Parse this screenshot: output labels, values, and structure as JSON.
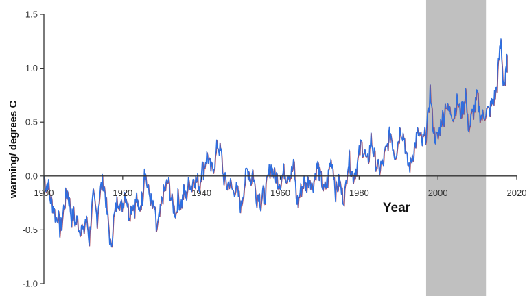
{
  "chart_data": {
    "type": "line",
    "title": "",
    "xlabel": "Year",
    "ylabel": "warming/ degrees C",
    "xlim": [
      1900,
      2020
    ],
    "ylim": [
      -1.0,
      1.5
    ],
    "x_ticks": [
      "1900",
      "1920",
      "1940",
      "1960",
      "1980",
      "2000",
      "2020"
    ],
    "y_ticks": [
      "1.5",
      "1.0",
      "0.5",
      "0.0",
      "-0.5",
      "-1.0"
    ],
    "grid": false,
    "legend": "none",
    "highlight_band": {
      "from": 1997,
      "to": 2012.2,
      "color": "#c0c0c0"
    },
    "colors": {
      "series_main": "#2e6fe0",
      "series_under": "#b04050",
      "axis": "#333333"
    },
    "values_by_year": {
      "1900": [
        0.0,
        -0.1
      ],
      "1901": [
        -0.05,
        -0.2
      ],
      "1902": [
        -0.25,
        -0.3
      ],
      "1903": [
        -0.4,
        -0.35
      ],
      "1904": [
        -0.5,
        -0.45
      ],
      "1905": [
        -0.3,
        -0.2
      ],
      "1906": [
        -0.15,
        -0.25
      ],
      "1907": [
        -0.4,
        -0.35
      ],
      "1908": [
        -0.45,
        -0.4
      ],
      "1909": [
        -0.5,
        -0.45
      ],
      "1910": [
        -0.55,
        -0.4
      ],
      "1911": [
        -0.45,
        -0.6
      ],
      "1912": [
        -0.35,
        -0.2
      ],
      "1913": [
        -0.3,
        -0.4
      ],
      "1914": [
        -0.2,
        -0.1
      ],
      "1915": [
        -0.05,
        -0.15
      ],
      "1916": [
        -0.35,
        -0.5
      ],
      "1917": [
        -0.7,
        -0.45
      ],
      "1918": [
        -0.35,
        -0.25
      ],
      "1919": [
        -0.2,
        -0.3
      ],
      "1920": [
        -0.25,
        -0.15
      ],
      "1921": [
        -0.2,
        -0.35
      ],
      "1922": [
        -0.3,
        -0.25
      ],
      "1923": [
        -0.3,
        -0.2
      ],
      "1924": [
        -0.35,
        -0.25
      ],
      "1925": [
        -0.2,
        0.1
      ],
      "1926": [
        -0.05,
        -0.15
      ],
      "1927": [
        -0.2,
        -0.3
      ],
      "1928": [
        -0.3,
        -0.5
      ],
      "1929": [
        -0.45,
        -0.35
      ],
      "1930": [
        -0.2,
        -0.15
      ],
      "1931": [
        -0.1,
        -0.05
      ],
      "1932": [
        -0.15,
        -0.25
      ],
      "1933": [
        -0.3,
        -0.35
      ],
      "1934": [
        -0.2,
        -0.25
      ],
      "1935": [
        -0.25,
        -0.15
      ],
      "1936": [
        -0.2,
        -0.1
      ],
      "1937": [
        -0.05,
        -0.1
      ],
      "1938": [
        0.0,
        -0.05
      ],
      "1939": [
        -0.05,
        -0.1
      ],
      "1940": [
        0.1,
        0.05
      ],
      "1941": [
        0.15,
        0.2
      ],
      "1942": [
        0.1,
        0.05
      ],
      "1943": [
        0.1,
        0.15
      ],
      "1944": [
        0.3,
        0.25
      ],
      "1945": [
        0.2,
        0.0
      ],
      "1946": [
        -0.05,
        -0.1
      ],
      "1947": [
        -0.05,
        -0.1
      ],
      "1948": [
        -0.15,
        -0.1
      ],
      "1949": [
        -0.15,
        -0.2
      ],
      "1950": [
        -0.3,
        -0.15
      ],
      "1951": [
        -0.05,
        0.05
      ],
      "1952": [
        0.05,
        -0.05
      ],
      "1953": [
        0.05,
        -0.1
      ],
      "1954": [
        -0.2,
        -0.15
      ],
      "1955": [
        -0.25,
        -0.15
      ],
      "1956": [
        -0.2,
        -0.1
      ],
      "1957": [
        0.0,
        0.1
      ],
      "1958": [
        0.05,
        0.0
      ],
      "1959": [
        0.0,
        -0.05
      ],
      "1960": [
        -0.05,
        0.0
      ],
      "1961": [
        0.05,
        0.0
      ],
      "1962": [
        0.05,
        0.0
      ],
      "1963": [
        0.05,
        0.1
      ],
      "1964": [
        -0.2,
        -0.25
      ],
      "1965": [
        -0.15,
        -0.1
      ],
      "1966": [
        -0.05,
        -0.1
      ],
      "1967": [
        -0.05,
        0.0
      ],
      "1968": [
        -0.1,
        -0.05
      ],
      "1969": [
        0.05,
        0.1
      ],
      "1970": [
        0.0,
        -0.05
      ],
      "1971": [
        -0.15,
        -0.1
      ],
      "1972": [
        -0.05,
        0.1
      ],
      "1973": [
        0.15,
        0.05
      ],
      "1974": [
        -0.15,
        -0.1
      ],
      "1975": [
        -0.05,
        -0.15
      ],
      "1976": [
        -0.2,
        -0.15
      ],
      "1977": [
        0.1,
        0.15
      ],
      "1978": [
        0.05,
        0.0
      ],
      "1979": [
        0.05,
        0.1
      ],
      "1980": [
        0.2,
        0.3
      ],
      "1981": [
        0.25,
        0.2
      ],
      "1982": [
        0.1,
        0.2
      ],
      "1983": [
        0.35,
        0.25
      ],
      "1984": [
        0.15,
        0.1
      ],
      "1985": [
        0.05,
        0.1
      ],
      "1986": [
        0.1,
        0.2
      ],
      "1987": [
        0.25,
        0.35
      ],
      "1988": [
        0.4,
        0.3
      ],
      "1989": [
        0.2,
        0.25
      ],
      "1990": [
        0.35,
        0.45
      ],
      "1991": [
        0.4,
        0.35
      ],
      "1992": [
        0.15,
        0.1
      ],
      "1993": [
        0.1,
        0.2
      ],
      "1994": [
        0.25,
        0.35
      ],
      "1995": [
        0.4,
        0.35
      ],
      "1996": [
        0.3,
        0.35
      ],
      "1997": [
        0.4,
        0.55
      ],
      "1998": [
        0.8,
        0.55
      ],
      "1999": [
        0.4,
        0.35
      ],
      "2000": [
        0.35,
        0.45
      ],
      "2001": [
        0.55,
        0.55
      ],
      "2002": [
        0.7,
        0.6
      ],
      "2003": [
        0.6,
        0.6
      ],
      "2004": [
        0.55,
        0.65
      ],
      "2005": [
        0.7,
        0.6
      ],
      "2006": [
        0.6,
        0.65
      ],
      "2007": [
        0.8,
        0.5
      ],
      "2008": [
        0.45,
        0.55
      ],
      "2009": [
        0.6,
        0.65
      ],
      "2010": [
        0.75,
        0.6
      ],
      "2011": [
        0.55,
        0.55
      ],
      "2012": [
        0.6,
        0.6
      ],
      "2013": [
        0.6,
        0.65
      ],
      "2014": [
        0.7,
        0.75
      ],
      "2015": [
        0.85,
        1.1
      ],
      "2016": [
        1.25,
        0.9
      ],
      "2017": [
        0.85,
        1.05
      ]
    }
  }
}
